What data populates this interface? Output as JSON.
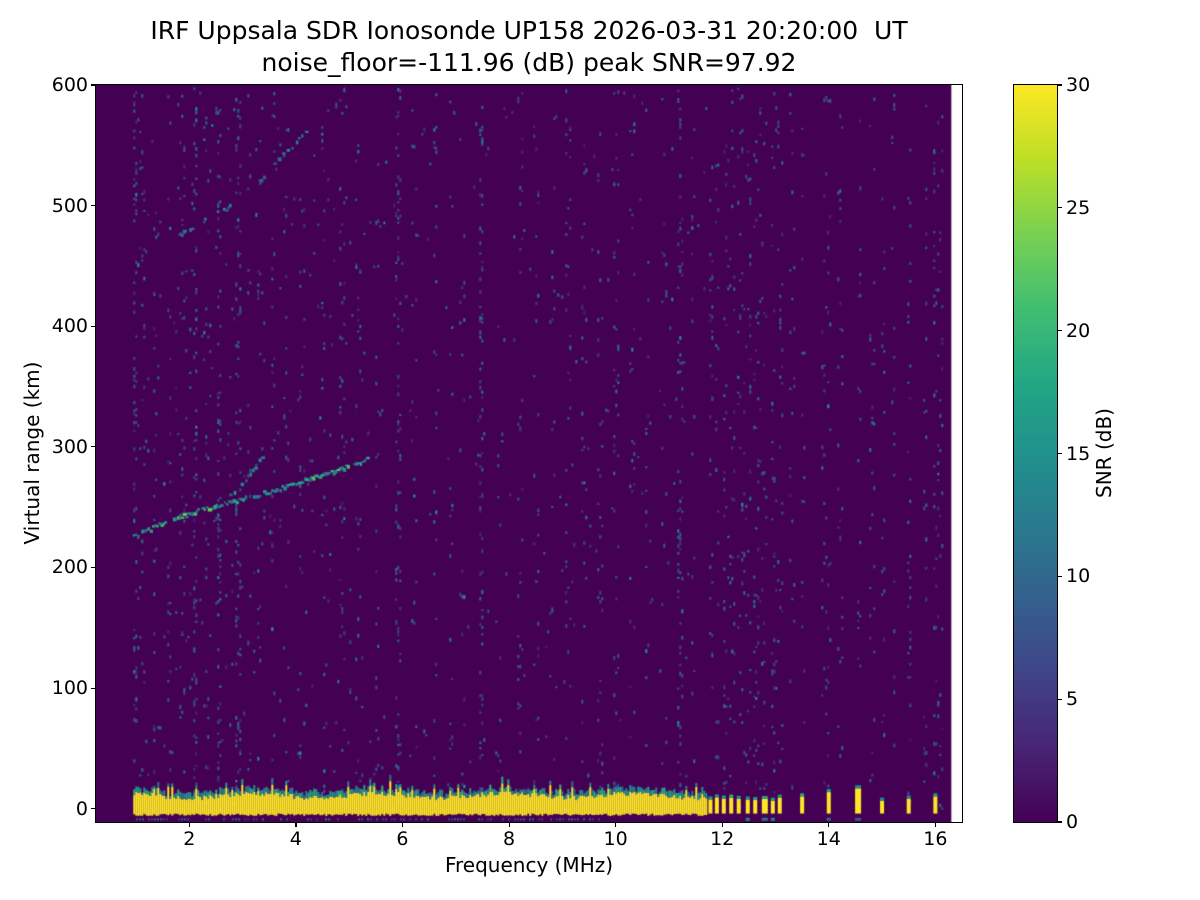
{
  "chart_data": {
    "type": "heatmap",
    "title": "IRF Uppsala SDR Ionosonde UP158 2026-03-31 20:20:00  UT",
    "subtitle": "noise_floor=-111.96 (dB) peak SNR=97.92",
    "xlabel": "Frequency (MHz)",
    "ylabel": "Virtual range (km)",
    "xlim": [
      0.25,
      16.5
    ],
    "ylim": [
      -11,
      600
    ],
    "x_ticks": [
      2,
      4,
      6,
      8,
      10,
      12,
      14,
      16
    ],
    "y_ticks": [
      0,
      100,
      200,
      300,
      400,
      500,
      600
    ],
    "grid": false,
    "colorbar": {
      "label": "SNR (dB)",
      "min": 0,
      "max": 30,
      "ticks": [
        0,
        5,
        10,
        15,
        20,
        25,
        30
      ],
      "colormap": "viridis"
    },
    "background_snr_db": 0,
    "features": {
      "ground_echo_band": {
        "freq_range_mhz": [
          0.95,
          11.7
        ],
        "virtual_range_km": [
          -4,
          12
        ],
        "snr_db": 30
      },
      "ground_echo_dashes": {
        "frequencies_mhz": [
          11.78,
          11.9,
          12.03,
          12.17,
          12.31,
          12.48,
          12.62,
          12.8,
          12.95,
          13.08,
          13.5,
          14.0,
          14.55,
          15.0,
          15.5,
          16.0
        ],
        "virtual_range_km": [
          -4,
          9
        ],
        "snr_db": 30
      },
      "ionospheric_trace": {
        "points_mhz_km": [
          [
            0.9,
            225
          ],
          [
            1.5,
            237
          ],
          [
            2.0,
            245
          ],
          [
            2.5,
            251
          ],
          [
            3.0,
            257
          ],
          [
            3.5,
            263
          ],
          [
            4.0,
            270
          ],
          [
            4.5,
            277
          ],
          [
            5.0,
            284
          ],
          [
            5.4,
            291
          ]
        ],
        "snr_db": 15
      },
      "trace_branch": {
        "points_mhz_km": [
          [
            2.75,
            260
          ],
          [
            3.05,
            272
          ],
          [
            3.3,
            288
          ],
          [
            3.45,
            300
          ]
        ],
        "snr_db": 10
      },
      "second_hop_trace": {
        "points_mhz_km": [
          [
            1.6,
            470
          ],
          [
            2.0,
            481
          ],
          [
            2.4,
            491
          ],
          [
            2.9,
            503
          ],
          [
            3.3,
            520
          ],
          [
            3.7,
            540
          ],
          [
            4.0,
            553
          ],
          [
            4.3,
            565
          ]
        ],
        "snr_db": 9
      },
      "bottom_clutter_row": {
        "freq_range_mhz": [
          1.0,
          9.7
        ],
        "virtual_range_km": -8,
        "snr_db": 10
      },
      "rfi_stripes_strong_mhz": [
        0.98,
        2.1,
        2.55,
        2.9,
        5.9,
        7.45,
        11.2
      ],
      "rfi_stripes_weak_mhz": [
        1.1,
        1.35,
        1.6,
        1.85,
        2.3,
        3.1,
        3.3,
        3.55,
        3.8,
        4.1,
        4.5,
        4.85,
        5.15,
        5.5,
        6.2,
        6.6,
        6.9,
        7.1,
        7.8,
        8.2,
        8.5,
        8.8,
        9.1,
        9.4,
        9.7,
        10.0,
        10.3,
        10.6,
        10.9,
        11.45,
        12.1,
        12.4,
        12.7,
        13.0,
        13.3,
        13.9,
        14.2,
        14.8,
        15.2,
        15.8,
        16.1
      ],
      "noise_snr_range_db": [
        3,
        16
      ]
    }
  }
}
